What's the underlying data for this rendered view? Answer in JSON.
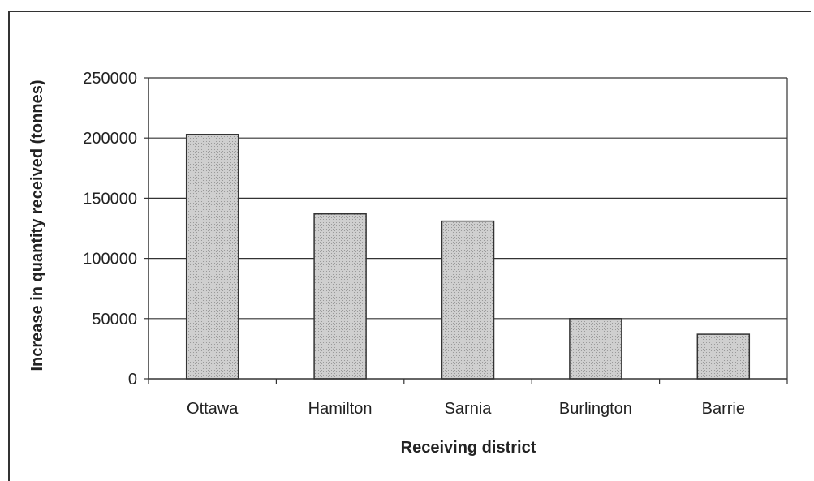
{
  "chart_data": {
    "type": "bar",
    "title": "",
    "xlabel": "Receiving district",
    "ylabel": "Increase in quantity received (tonnes)",
    "categories": [
      "Ottawa",
      "Hamilton",
      "Sarnia",
      "Burlington",
      "Barrie"
    ],
    "values": [
      203000,
      137000,
      131000,
      50000,
      37000
    ],
    "ylim": [
      0,
      250000
    ],
    "yticks": [
      "0",
      "50000",
      "100000",
      "150000",
      "200000",
      "250000"
    ],
    "grid": true,
    "legend": "none",
    "colors": {
      "bar_fill": "#c4c4c4",
      "bar_stroke": "#333333",
      "grid": "#333333",
      "plot_background": "#ffffff"
    }
  }
}
